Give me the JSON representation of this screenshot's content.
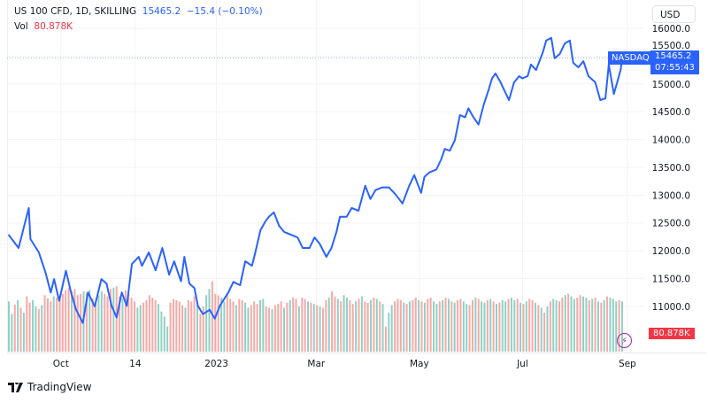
{
  "header": {
    "symbol": "US 100 CFD, 1D, SKILLING",
    "last": "15465.2",
    "change": "−15.4 (−0.10%)",
    "vol_label": "Vol",
    "vol_value": "80.878K"
  },
  "currency_button": "USD",
  "price_label": {
    "name": "NASDAQ",
    "price": "15465.2",
    "countdown": "07:55:43"
  },
  "volume_label": "80.878K",
  "logo": "TradingView",
  "colors": {
    "line": "#2962ff",
    "up": "#8fd1c4",
    "down": "#f7a9a7",
    "tag": "#2962ff",
    "vol_tag": "#f23645"
  },
  "chart_data": {
    "type": "line",
    "title": "US 100 CFD, 1D, SKILLING",
    "xlabel": "",
    "ylabel": "",
    "ylim": [
      10170,
      16510
    ],
    "xlim": [
      "2022-08-26",
      "2023-09-11"
    ],
    "grid": true,
    "x_ticks": [
      {
        "date": "2022-10-01",
        "label": "Oct"
      },
      {
        "date": "2022-11-14",
        "label": "14"
      },
      {
        "date": "2023-01-01",
        "label": "2023"
      },
      {
        "date": "2023-03-01",
        "label": "Mar"
      },
      {
        "date": "2023-05-01",
        "label": "May"
      },
      {
        "date": "2023-07-01",
        "label": "Jul"
      },
      {
        "date": "2023-09-01",
        "label": "Sep"
      }
    ],
    "y_ticks": [
      "16000.0",
      "15500.0",
      "15000.0",
      "14500.0",
      "14000.0",
      "13500.0",
      "13000.0",
      "12500.0",
      "12000.0",
      "11500.0",
      "11000.0"
    ],
    "series": [
      {
        "points": [
          [
            "2022-08-31",
            12290
          ],
          [
            "2022-09-06",
            12050
          ],
          [
            "2022-09-12",
            12770
          ],
          [
            "2022-09-13",
            12210
          ],
          [
            "2022-09-18",
            11970
          ],
          [
            "2022-09-22",
            11600
          ],
          [
            "2022-09-25",
            11250
          ],
          [
            "2022-09-27",
            11490
          ],
          [
            "2022-09-30",
            11100
          ],
          [
            "2022-10-04",
            11640
          ],
          [
            "2022-10-07",
            11250
          ],
          [
            "2022-10-10",
            10940
          ],
          [
            "2022-10-14",
            10700
          ],
          [
            "2022-10-17",
            11250
          ],
          [
            "2022-10-21",
            11000
          ],
          [
            "2022-10-25",
            11490
          ],
          [
            "2022-10-28",
            11410
          ],
          [
            "2022-10-31",
            11010
          ],
          [
            "2022-11-03",
            10800
          ],
          [
            "2022-11-06",
            11250
          ],
          [
            "2022-11-09",
            11010
          ],
          [
            "2022-11-12",
            11760
          ],
          [
            "2022-11-16",
            11890
          ],
          [
            "2022-11-18",
            11730
          ],
          [
            "2022-11-22",
            11970
          ],
          [
            "2022-11-26",
            11650
          ],
          [
            "2022-11-30",
            12050
          ],
          [
            "2022-12-04",
            11570
          ],
          [
            "2022-12-07",
            11810
          ],
          [
            "2022-12-11",
            11450
          ],
          [
            "2022-12-13",
            11890
          ],
          [
            "2022-12-16",
            11410
          ],
          [
            "2022-12-19",
            11330
          ],
          [
            "2022-12-21",
            11010
          ],
          [
            "2022-12-24",
            10860
          ],
          [
            "2022-12-28",
            10940
          ],
          [
            "2022-12-31",
            10780
          ],
          [
            "2023-01-03",
            11010
          ],
          [
            "2023-01-08",
            11250
          ],
          [
            "2023-01-11",
            11440
          ],
          [
            "2023-01-15",
            11380
          ],
          [
            "2023-01-18",
            11810
          ],
          [
            "2023-01-22",
            11730
          ],
          [
            "2023-01-24",
            11970
          ],
          [
            "2023-01-27",
            12370
          ],
          [
            "2023-01-30",
            12530
          ],
          [
            "2023-02-01",
            12610
          ],
          [
            "2023-02-04",
            12690
          ],
          [
            "2023-02-07",
            12450
          ],
          [
            "2023-02-10",
            12340
          ],
          [
            "2023-02-14",
            12290
          ],
          [
            "2023-02-18",
            12240
          ],
          [
            "2023-02-21",
            12050
          ],
          [
            "2023-02-25",
            12050
          ],
          [
            "2023-02-28",
            12240
          ],
          [
            "2023-03-03",
            12130
          ],
          [
            "2023-03-07",
            11890
          ],
          [
            "2023-03-10",
            12050
          ],
          [
            "2023-03-13",
            12340
          ],
          [
            "2023-03-15",
            12610
          ],
          [
            "2023-03-19",
            12610
          ],
          [
            "2023-03-22",
            12770
          ],
          [
            "2023-03-26",
            12720
          ],
          [
            "2023-03-30",
            13170
          ],
          [
            "2023-04-02",
            12930
          ],
          [
            "2023-04-05",
            13090
          ],
          [
            "2023-04-09",
            13140
          ],
          [
            "2023-04-13",
            13140
          ],
          [
            "2023-04-17",
            13010
          ],
          [
            "2023-04-21",
            12850
          ],
          [
            "2023-04-25",
            13170
          ],
          [
            "2023-04-28",
            13360
          ],
          [
            "2023-05-02",
            13040
          ],
          [
            "2023-05-04",
            13330
          ],
          [
            "2023-05-07",
            13410
          ],
          [
            "2023-05-11",
            13460
          ],
          [
            "2023-05-14",
            13650
          ],
          [
            "2023-05-16",
            13830
          ],
          [
            "2023-05-19",
            13800
          ],
          [
            "2023-05-22",
            13990
          ],
          [
            "2023-05-25",
            14440
          ],
          [
            "2023-05-28",
            14400
          ],
          [
            "2023-05-30",
            14560
          ],
          [
            "2023-06-02",
            14400
          ],
          [
            "2023-06-05",
            14270
          ],
          [
            "2023-06-08",
            14620
          ],
          [
            "2023-06-11",
            14900
          ],
          [
            "2023-06-13",
            15100
          ],
          [
            "2023-06-15",
            15190
          ],
          [
            "2023-06-18",
            15030
          ],
          [
            "2023-06-20",
            14900
          ],
          [
            "2023-06-23",
            14710
          ],
          [
            "2023-06-26",
            15030
          ],
          [
            "2023-06-29",
            15140
          ],
          [
            "2023-07-01",
            15100
          ],
          [
            "2023-07-04",
            15140
          ],
          [
            "2023-07-06",
            15350
          ],
          [
            "2023-07-09",
            15250
          ],
          [
            "2023-07-13",
            15570
          ],
          [
            "2023-07-15",
            15780
          ],
          [
            "2023-07-18",
            15830
          ],
          [
            "2023-07-20",
            15460
          ],
          [
            "2023-07-23",
            15540
          ],
          [
            "2023-07-26",
            15730
          ],
          [
            "2023-07-29",
            15780
          ],
          [
            "2023-07-31",
            15380
          ],
          [
            "2023-08-03",
            15300
          ],
          [
            "2023-08-06",
            15410
          ],
          [
            "2023-08-09",
            15140
          ],
          [
            "2023-08-13",
            15030
          ],
          [
            "2023-08-16",
            14710
          ],
          [
            "2023-08-19",
            14740
          ],
          [
            "2023-08-21",
            15350
          ],
          [
            "2023-08-24",
            14820
          ],
          [
            "2023-08-26",
            15030
          ],
          [
            "2023-08-28",
            15250
          ],
          [
            "2023-08-29",
            15465
          ]
        ]
      }
    ],
    "volume": {
      "values": [
        80,
        60,
        75,
        82,
        70,
        62,
        88,
        78,
        82,
        72,
        68,
        74,
        90,
        85,
        80,
        88,
        86,
        84,
        92,
        98,
        102,
        96,
        100,
        90,
        92,
        96,
        94,
        98,
        85,
        80,
        90,
        96,
        92,
        88,
        100,
        102,
        104,
        88,
        84,
        98,
        92,
        86,
        80,
        70,
        74,
        78,
        82,
        90,
        86,
        82,
        76,
        64,
        56,
        40,
        78,
        84,
        82,
        80,
        74,
        70,
        82,
        80,
        88,
        74,
        60,
        72,
        90,
        100,
        112,
        92,
        90,
        86,
        80,
        92,
        84,
        80,
        74,
        84,
        82,
        78,
        70,
        74,
        80,
        76,
        82,
        84,
        72,
        70,
        68,
        74,
        76,
        80,
        70,
        78,
        82,
        86,
        84,
        72,
        86,
        84,
        80,
        78,
        76,
        74,
        72,
        70,
        82,
        86,
        96,
        88,
        84,
        80,
        90,
        86,
        82,
        76,
        80,
        84,
        88,
        80,
        78,
        82,
        86,
        84,
        80,
        76,
        40,
        62,
        74,
        80,
        84,
        82,
        78,
        76,
        80,
        82,
        86,
        82,
        80,
        78,
        84,
        86,
        80,
        76,
        80,
        82,
        86,
        84,
        80,
        78,
        82,
        84,
        80,
        76,
        74,
        82,
        86,
        84,
        80,
        78,
        82,
        84,
        80,
        76,
        78,
        82,
        80,
        84,
        86,
        82,
        84,
        78,
        76,
        80,
        84,
        82,
        78,
        74,
        70,
        62,
        72,
        80,
        84,
        82,
        80,
        86,
        90,
        92,
        88,
        84,
        86,
        90,
        88,
        86,
        82,
        84,
        86,
        80,
        78,
        82,
        88,
        86,
        84,
        80,
        82,
        80
      ],
      "up": [
        1,
        1,
        0,
        1,
        0,
        1,
        0,
        0,
        1,
        1,
        0,
        1,
        0,
        0,
        0,
        1,
        0,
        0,
        0,
        0,
        0,
        1,
        0,
        0,
        0,
        1,
        0,
        1,
        0,
        0,
        1,
        1,
        0,
        0,
        0,
        1,
        0,
        0,
        1,
        0,
        0,
        0,
        0,
        1,
        1,
        0,
        0,
        0,
        0,
        0,
        1,
        1,
        1,
        1,
        0,
        0,
        0,
        0,
        0,
        1,
        0,
        0,
        0,
        1,
        0,
        0,
        1,
        1,
        0,
        0,
        0,
        1,
        1,
        0,
        0,
        0,
        1,
        0,
        0,
        1,
        1,
        0,
        0,
        0,
        1,
        1,
        0,
        0,
        1,
        0,
        0,
        0,
        1,
        0,
        1,
        0,
        0,
        1,
        0,
        0,
        1,
        0,
        1,
        0,
        1,
        0,
        0,
        1,
        0,
        0,
        1,
        0,
        1,
        1,
        0,
        0,
        1,
        0,
        1,
        0,
        0,
        1,
        0,
        1,
        0,
        1,
        0,
        1,
        1,
        0,
        0,
        0,
        1,
        0,
        1,
        0,
        0,
        1,
        0,
        1,
        0,
        0,
        1,
        1,
        0,
        1,
        0,
        1,
        0,
        1,
        0,
        0,
        1,
        1,
        0,
        0,
        1,
        0,
        1,
        1,
        0,
        1,
        0,
        1,
        0,
        1,
        1,
        0,
        1,
        1,
        0,
        1,
        0,
        1,
        0,
        0,
        1,
        0,
        1,
        0,
        1,
        0,
        1,
        1,
        0,
        0,
        1,
        0,
        1,
        1,
        0,
        0,
        1,
        1,
        0,
        1,
        0,
        1,
        0,
        1,
        0,
        1,
        1,
        1,
        0,
        1
      ]
    }
  }
}
